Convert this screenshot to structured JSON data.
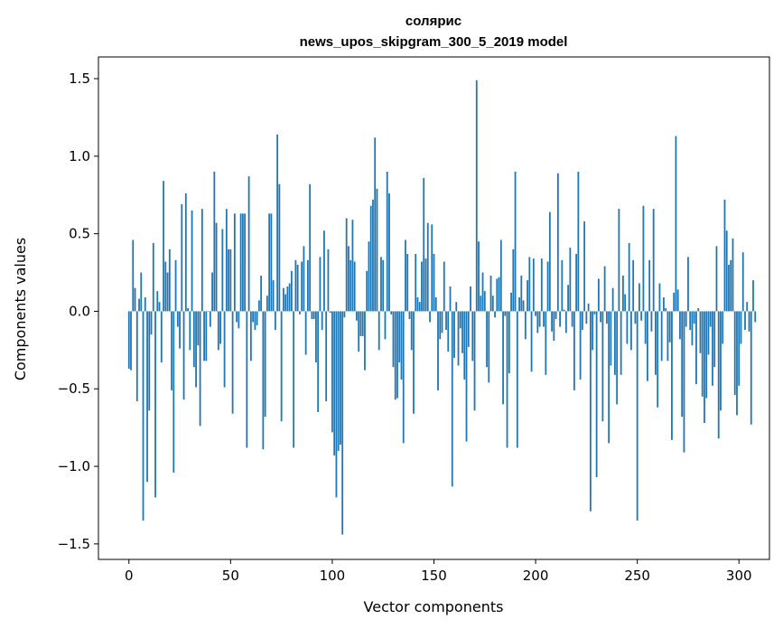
{
  "chart_data": {
    "type": "bar",
    "title": "солярис",
    "subtitle": "news_upos_skipgram_300_5_2019 model",
    "xlabel": "Vector components",
    "ylabel": "Components values",
    "xlim": [
      -15,
      315
    ],
    "ylim": [
      -1.6,
      1.64
    ],
    "xticks": [
      0,
      50,
      100,
      150,
      200,
      250,
      300
    ],
    "yticks": [
      -1.5,
      -1.0,
      -0.5,
      0.0,
      0.5,
      1.0,
      1.5
    ],
    "ytick_labels": [
      "−1.5",
      "−1.0",
      "−0.5",
      "0.0",
      "0.5",
      "1.0",
      "1.5"
    ],
    "bar_color": "#1f77b4",
    "values": [
      -0.37,
      -0.38,
      0.46,
      0.15,
      -0.58,
      0.08,
      0.25,
      -1.35,
      0.09,
      -1.1,
      -0.64,
      -0.15,
      0.44,
      -1.2,
      0.13,
      0.06,
      -0.33,
      0.84,
      0.32,
      0.25,
      0.4,
      -0.51,
      -1.04,
      0.33,
      -0.1,
      -0.24,
      0.69,
      -0.57,
      0.76,
      0.02,
      -0.25,
      0.65,
      -0.36,
      -0.49,
      -0.22,
      -0.74,
      0.66,
      -0.32,
      -0.32,
      0.0,
      -0.1,
      0.25,
      0.9,
      0.57,
      -0.25,
      -0.21,
      0.53,
      -0.49,
      0.66,
      0.4,
      0.4,
      -0.66,
      0.63,
      -0.07,
      -0.11,
      0.63,
      0.63,
      0.63,
      -0.88,
      0.87,
      -0.32,
      -0.07,
      -0.12,
      -0.09,
      0.07,
      0.23,
      -0.89,
      -0.68,
      0.1,
      0.63,
      0.63,
      0.2,
      -0.12,
      1.14,
      0.82,
      -0.71,
      0.15,
      0.11,
      0.16,
      0.18,
      0.26,
      -0.88,
      0.33,
      0.3,
      -0.02,
      0.32,
      0.42,
      -0.28,
      0.33,
      0.82,
      -0.05,
      -0.05,
      -0.33,
      -0.65,
      0.35,
      -0.12,
      0.52,
      -0.58,
      0.4,
      -0.01,
      -0.78,
      -0.93,
      -1.2,
      -0.9,
      -0.86,
      -1.44,
      -0.04,
      0.6,
      0.42,
      0.33,
      0.59,
      0.32,
      -0.06,
      -0.26,
      -0.16,
      -0.16,
      -0.38,
      0.26,
      0.45,
      0.68,
      0.72,
      1.12,
      0.79,
      -0.25,
      0.35,
      0.33,
      -0.18,
      0.9,
      0.76,
      -0.02,
      -0.36,
      -0.57,
      -0.56,
      -0.33,
      -0.44,
      -0.85,
      0.46,
      0.37,
      -0.05,
      -0.25,
      -0.66,
      0.37,
      0.09,
      0.06,
      0.32,
      0.86,
      0.34,
      0.57,
      -0.07,
      0.56,
      0.37,
      0.09,
      -0.51,
      -0.18,
      -0.14,
      0.32,
      -0.12,
      -0.26,
      0.16,
      -1.13,
      -0.3,
      0.06,
      -0.35,
      -0.11,
      -0.27,
      -0.44,
      -0.84,
      -0.23,
      0.16,
      -0.32,
      -0.64,
      1.49,
      0.45,
      0.1,
      0.25,
      0.13,
      -0.36,
      -0.46,
      0.23,
      0.1,
      -0.04,
      0.21,
      0.22,
      0.46,
      -0.6,
      -0.03,
      -0.88,
      -0.4,
      0.12,
      0.4,
      0.9,
      -0.88,
      0.09,
      0.23,
      0.07,
      -0.18,
      0.2,
      0.35,
      -0.39,
      0.34,
      -0.03,
      -0.14,
      -0.1,
      0.34,
      -0.1,
      -0.41,
      0.32,
      0.64,
      -0.13,
      -0.19,
      -0.05,
      0.89,
      -0.1,
      0.33,
      0.01,
      -0.14,
      0.17,
      0.41,
      -0.1,
      -0.51,
      0.37,
      0.9,
      -0.44,
      -0.12,
      0.58,
      -0.08,
      0.05,
      -1.29,
      -0.25,
      -0.02,
      -1.07,
      0.21,
      -0.07,
      -0.71,
      0.29,
      -0.08,
      -0.85,
      -0.35,
      0.15,
      -0.41,
      -0.6,
      0.66,
      -0.41,
      0.23,
      0.11,
      -0.21,
      0.44,
      -0.25,
      0.33,
      -0.08,
      -1.35,
      0.18,
      -0.06,
      0.68,
      -0.21,
      -0.45,
      0.33,
      -0.13,
      0.66,
      -0.41,
      -0.62,
      0.18,
      -0.32,
      0.09,
      0.02,
      -0.32,
      -0.2,
      -0.83,
      0.12,
      1.13,
      0.14,
      -0.18,
      -0.68,
      -0.91,
      -0.1,
      0.35,
      -0.12,
      -0.22,
      -0.08,
      -0.47,
      0.02,
      -0.27,
      -0.55,
      -0.72,
      -0.56,
      -0.28,
      -0.1,
      -0.48,
      -0.36,
      0.42,
      -0.82,
      -0.64,
      -0.21,
      0.72,
      0.52,
      0.3,
      0.33,
      0.47,
      -0.54,
      -0.67,
      -0.48,
      -0.21,
      0.38,
      -0.12,
      0.06,
      -0.13,
      -0.73,
      0.2,
      -0.07
    ]
  }
}
